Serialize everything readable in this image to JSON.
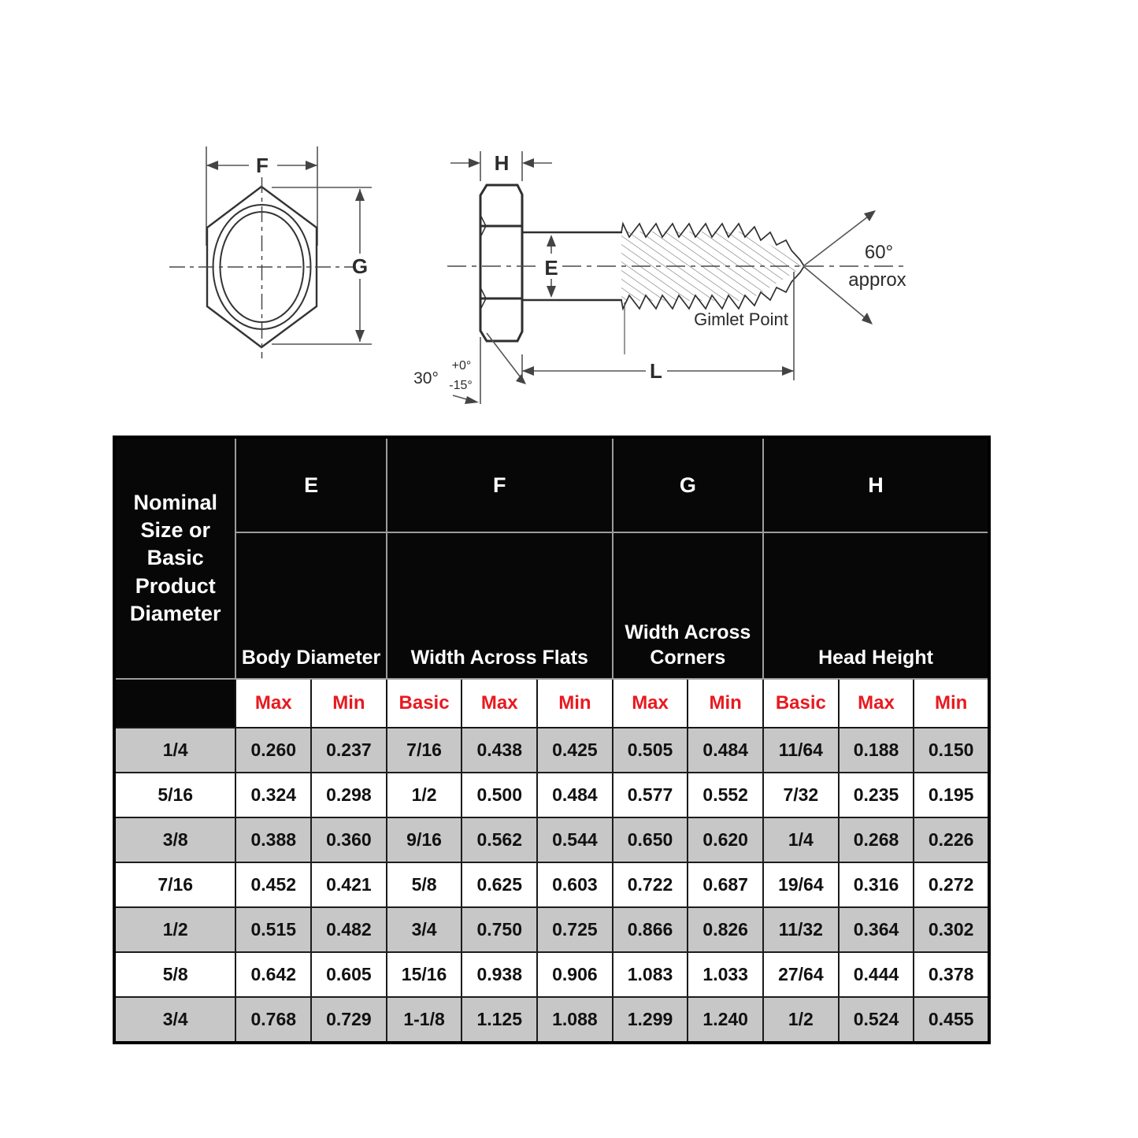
{
  "diagram": {
    "front_view": {
      "f_label": "F",
      "g_label": "G"
    },
    "side_view": {
      "h_label": "H",
      "e_label": "E",
      "l_label": "L",
      "angle_30": "30°",
      "tolerance_plus": "+0°",
      "tolerance_minus": "-15°",
      "angle_60": "60°",
      "angle_60_qualifier": "approx",
      "point_label": "Gimlet Point"
    }
  },
  "table": {
    "corner_header": "Nominal Size or Basic Product Diameter",
    "groups": [
      {
        "letter": "E",
        "name": "Body Diameter"
      },
      {
        "letter": "F",
        "name": "Width Across Flats"
      },
      {
        "letter": "G",
        "name": "Width Across Corners"
      },
      {
        "letter": "H",
        "name": "Head Height"
      }
    ],
    "sub_headers": [
      "Max",
      "Min",
      "Basic",
      "Max",
      "Min",
      "Max",
      "Min",
      "Basic",
      "Max",
      "Min"
    ],
    "rows": [
      [
        "1/4",
        "0.260",
        "0.237",
        "7/16",
        "0.438",
        "0.425",
        "0.505",
        "0.484",
        "11/64",
        "0.188",
        "0.150"
      ],
      [
        "5/16",
        "0.324",
        "0.298",
        "1/2",
        "0.500",
        "0.484",
        "0.577",
        "0.552",
        "7/32",
        "0.235",
        "0.195"
      ],
      [
        "3/8",
        "0.388",
        "0.360",
        "9/16",
        "0.562",
        "0.544",
        "0.650",
        "0.620",
        "1/4",
        "0.268",
        "0.226"
      ],
      [
        "7/16",
        "0.452",
        "0.421",
        "5/8",
        "0.625",
        "0.603",
        "0.722",
        "0.687",
        "19/64",
        "0.316",
        "0.272"
      ],
      [
        "1/2",
        "0.515",
        "0.482",
        "3/4",
        "0.750",
        "0.725",
        "0.866",
        "0.826",
        "11/32",
        "0.364",
        "0.302"
      ],
      [
        "5/8",
        "0.642",
        "0.605",
        "15/16",
        "0.938",
        "0.906",
        "1.083",
        "1.033",
        "27/64",
        "0.444",
        "0.378"
      ],
      [
        "3/4",
        "0.768",
        "0.729",
        "1-1/8",
        "1.125",
        "1.088",
        "1.299",
        "1.240",
        "1/2",
        "0.524",
        "0.455"
      ]
    ],
    "colors": {
      "header_bg": "#070707",
      "header_text": "#ffffff",
      "sub_header_text": "#e8191f",
      "shaded_row_bg": "#c7c7c7",
      "grid_line": "#1c1c1c"
    }
  }
}
